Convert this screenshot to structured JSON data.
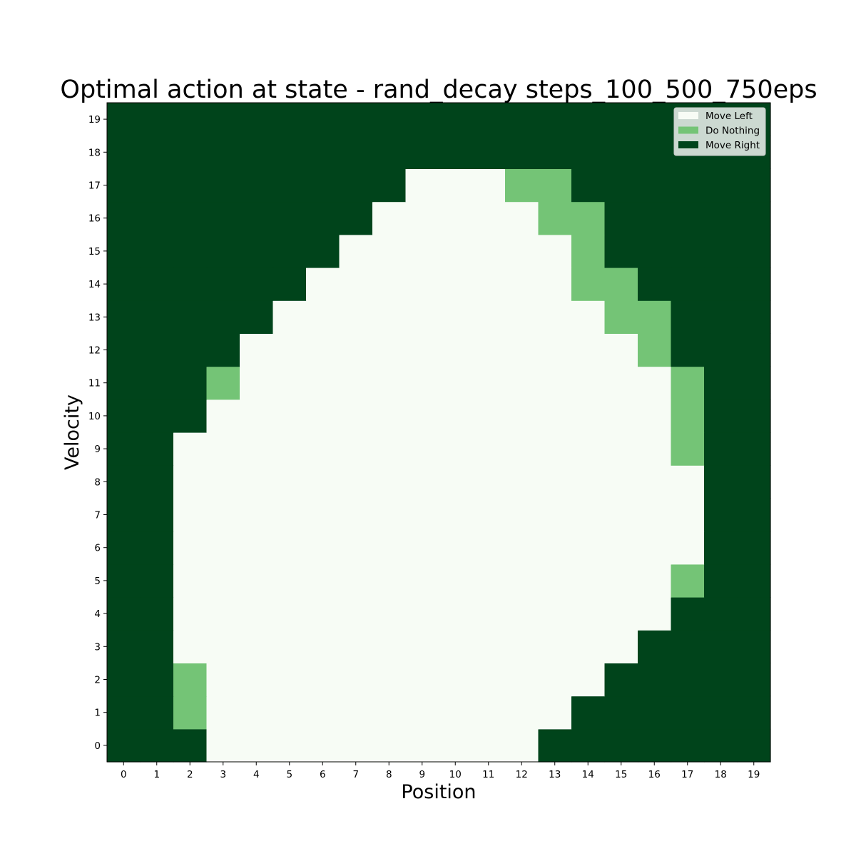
{
  "chart_data": {
    "type": "heatmap",
    "title": "Optimal action at state - rand_decay steps_100_500_750eps",
    "xlabel": "Position",
    "ylabel": "Velocity",
    "x_ticks": [
      "0",
      "1",
      "2",
      "3",
      "4",
      "5",
      "6",
      "7",
      "8",
      "9",
      "10",
      "11",
      "12",
      "13",
      "14",
      "15",
      "16",
      "17",
      "18",
      "19"
    ],
    "y_ticks": [
      "0",
      "1",
      "2",
      "3",
      "4",
      "5",
      "6",
      "7",
      "8",
      "9",
      "10",
      "11",
      "12",
      "13",
      "14",
      "15",
      "16",
      "17",
      "18",
      "19"
    ],
    "legend": {
      "placement": "top-right",
      "entries": [
        {
          "label": "Move Left",
          "color": "#f7fcf5"
        },
        {
          "label": "Do Nothing",
          "color": "#74c476"
        },
        {
          "label": "Move Right",
          "color": "#00441b"
        }
      ]
    },
    "action_codes": {
      "0": "Move Left",
      "1": "Do Nothing",
      "2": "Move Right"
    },
    "grid_rows_velocity_0_to_19": [
      [
        2,
        2,
        2,
        0,
        0,
        0,
        0,
        0,
        0,
        0,
        0,
        0,
        0,
        2,
        2,
        2,
        2,
        2,
        2,
        2
      ],
      [
        2,
        2,
        1,
        0,
        0,
        0,
        0,
        0,
        0,
        0,
        0,
        0,
        0,
        0,
        2,
        2,
        2,
        2,
        2,
        2
      ],
      [
        2,
        2,
        1,
        0,
        0,
        0,
        0,
        0,
        0,
        0,
        0,
        0,
        0,
        0,
        0,
        2,
        2,
        2,
        2,
        2
      ],
      [
        2,
        2,
        0,
        0,
        0,
        0,
        0,
        0,
        0,
        0,
        0,
        0,
        0,
        0,
        0,
        0,
        2,
        2,
        2,
        2
      ],
      [
        2,
        2,
        0,
        0,
        0,
        0,
        0,
        0,
        0,
        0,
        0,
        0,
        0,
        0,
        0,
        0,
        0,
        2,
        2,
        2
      ],
      [
        2,
        2,
        0,
        0,
        0,
        0,
        0,
        0,
        0,
        0,
        0,
        0,
        0,
        0,
        0,
        0,
        0,
        1,
        2,
        2
      ],
      [
        2,
        2,
        0,
        0,
        0,
        0,
        0,
        0,
        0,
        0,
        0,
        0,
        0,
        0,
        0,
        0,
        0,
        0,
        2,
        2
      ],
      [
        2,
        2,
        0,
        0,
        0,
        0,
        0,
        0,
        0,
        0,
        0,
        0,
        0,
        0,
        0,
        0,
        0,
        0,
        2,
        2
      ],
      [
        2,
        2,
        0,
        0,
        0,
        0,
        0,
        0,
        0,
        0,
        0,
        0,
        0,
        0,
        0,
        0,
        0,
        0,
        2,
        2
      ],
      [
        2,
        2,
        0,
        0,
        0,
        0,
        0,
        0,
        0,
        0,
        0,
        0,
        0,
        0,
        0,
        0,
        0,
        1,
        2,
        2
      ],
      [
        2,
        2,
        2,
        0,
        0,
        0,
        0,
        0,
        0,
        0,
        0,
        0,
        0,
        0,
        0,
        0,
        0,
        1,
        2,
        2
      ],
      [
        2,
        2,
        2,
        1,
        0,
        0,
        0,
        0,
        0,
        0,
        0,
        0,
        0,
        0,
        0,
        0,
        0,
        1,
        2,
        2
      ],
      [
        2,
        2,
        2,
        2,
        0,
        0,
        0,
        0,
        0,
        0,
        0,
        0,
        0,
        0,
        0,
        0,
        1,
        2,
        2,
        2
      ],
      [
        2,
        2,
        2,
        2,
        2,
        0,
        0,
        0,
        0,
        0,
        0,
        0,
        0,
        0,
        0,
        1,
        1,
        2,
        2,
        2
      ],
      [
        2,
        2,
        2,
        2,
        2,
        2,
        0,
        0,
        0,
        0,
        0,
        0,
        0,
        0,
        1,
        1,
        2,
        2,
        2,
        2
      ],
      [
        2,
        2,
        2,
        2,
        2,
        2,
        2,
        0,
        0,
        0,
        0,
        0,
        0,
        0,
        1,
        2,
        2,
        2,
        2,
        2
      ],
      [
        2,
        2,
        2,
        2,
        2,
        2,
        2,
        2,
        0,
        0,
        0,
        0,
        0,
        1,
        1,
        2,
        2,
        2,
        2,
        2
      ],
      [
        2,
        2,
        2,
        2,
        2,
        2,
        2,
        2,
        2,
        0,
        0,
        0,
        1,
        1,
        2,
        2,
        2,
        2,
        2,
        2
      ],
      [
        2,
        2,
        2,
        2,
        2,
        2,
        2,
        2,
        2,
        2,
        2,
        2,
        2,
        2,
        2,
        2,
        2,
        2,
        2,
        2
      ],
      [
        2,
        2,
        2,
        2,
        2,
        2,
        2,
        2,
        2,
        2,
        2,
        2,
        2,
        2,
        2,
        2,
        2,
        2,
        2,
        2
      ]
    ]
  }
}
